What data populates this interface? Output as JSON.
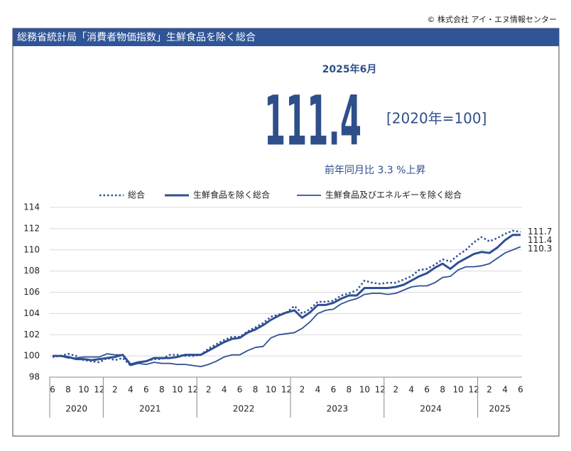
{
  "copyright": "© 株式会社 アイ・エヌ情報センター",
  "header_title": "総務省統計局「消費者物価指数」生鮮食品を除く総合",
  "headline": {
    "period": "2025年6月",
    "value": "111.4",
    "base": "[2020年=100]",
    "yoy_text": "前年同月比 3.3 %上昇"
  },
  "chart_data": {
    "type": "line",
    "legend": "top",
    "grid": true,
    "categories": [
      "6",
      null,
      "8",
      null,
      "10",
      null,
      "12",
      null,
      "2",
      null,
      "4",
      null,
      "6",
      null,
      "8",
      null,
      "10",
      null,
      "12",
      null,
      "2",
      null,
      "4",
      null,
      "6",
      null,
      "8",
      null,
      "10",
      null,
      "12",
      null,
      "2",
      null,
      "4",
      null,
      "6",
      null,
      "8",
      null,
      "10",
      null,
      "12",
      null,
      "2",
      null,
      "4",
      null,
      "6",
      null,
      "8",
      null,
      "10",
      null,
      "12",
      null,
      "2",
      null,
      "4",
      null,
      "6"
    ],
    "years": [
      "2020",
      "2021",
      "2022",
      "2023",
      "2024",
      "2025"
    ],
    "ylim": [
      98,
      114
    ],
    "yticks": [
      98,
      100,
      102,
      104,
      106,
      108,
      110,
      112,
      114
    ],
    "series": [
      {
        "name": "総合",
        "color": "#2f4f94",
        "style": "dotted",
        "values": [
          99.9,
          100.0,
          100.2,
          100.0,
          99.6,
          99.5,
          99.4,
          99.8,
          99.6,
          99.8,
          99.1,
          99.4,
          99.5,
          99.7,
          99.7,
          100.1,
          100.1,
          100.0,
          100.0,
          100.1,
          100.7,
          101.1,
          101.5,
          101.8,
          101.8,
          102.3,
          102.7,
          103.1,
          103.7,
          103.9,
          104.1,
          104.7,
          104.0,
          104.4,
          105.1,
          105.1,
          105.2,
          105.7,
          105.9,
          106.2,
          107.1,
          106.9,
          106.8,
          106.9,
          106.9,
          107.2,
          107.5,
          108.1,
          108.2,
          108.6,
          109.1,
          108.9,
          109.5,
          110.0,
          110.7,
          111.2,
          110.8,
          111.1,
          111.5,
          111.8,
          111.7
        ]
      },
      {
        "name": "生鮮食品を除く総合",
        "color": "#2f4f94",
        "style": "thick",
        "values": [
          100.0,
          100.0,
          99.9,
          99.7,
          99.7,
          99.6,
          99.7,
          99.8,
          99.9,
          100.1,
          99.2,
          99.4,
          99.5,
          99.8,
          99.8,
          99.8,
          99.9,
          100.1,
          100.1,
          100.1,
          100.5,
          100.9,
          101.3,
          101.6,
          101.7,
          102.2,
          102.5,
          102.9,
          103.4,
          103.8,
          104.1,
          104.3,
          103.6,
          104.1,
          104.8,
          104.8,
          105.0,
          105.4,
          105.7,
          105.7,
          106.4,
          106.4,
          106.4,
          106.4,
          106.5,
          106.7,
          107.1,
          107.5,
          107.8,
          108.3,
          108.7,
          108.2,
          108.8,
          109.2,
          109.6,
          109.8,
          109.7,
          110.2,
          110.9,
          111.4,
          111.4
        ]
      },
      {
        "name": "生鮮食品及びエネルギーを除く総合",
        "color": "#2f4f94",
        "style": "thin",
        "values": [
          100.0,
          100.0,
          99.8,
          99.8,
          99.9,
          99.9,
          99.9,
          100.2,
          100.1,
          100.1,
          99.1,
          99.3,
          99.2,
          99.4,
          99.3,
          99.3,
          99.2,
          99.2,
          99.1,
          99.0,
          99.2,
          99.5,
          99.9,
          100.1,
          100.1,
          100.5,
          100.8,
          100.9,
          101.7,
          102.0,
          102.1,
          102.2,
          102.6,
          103.2,
          104.0,
          104.3,
          104.4,
          104.9,
          105.2,
          105.4,
          105.8,
          105.9,
          105.9,
          105.8,
          105.9,
          106.2,
          106.5,
          106.6,
          106.6,
          106.9,
          107.4,
          107.5,
          108.1,
          108.4,
          108.4,
          108.5,
          108.7,
          109.2,
          109.7,
          110.0,
          110.3
        ]
      }
    ]
  }
}
